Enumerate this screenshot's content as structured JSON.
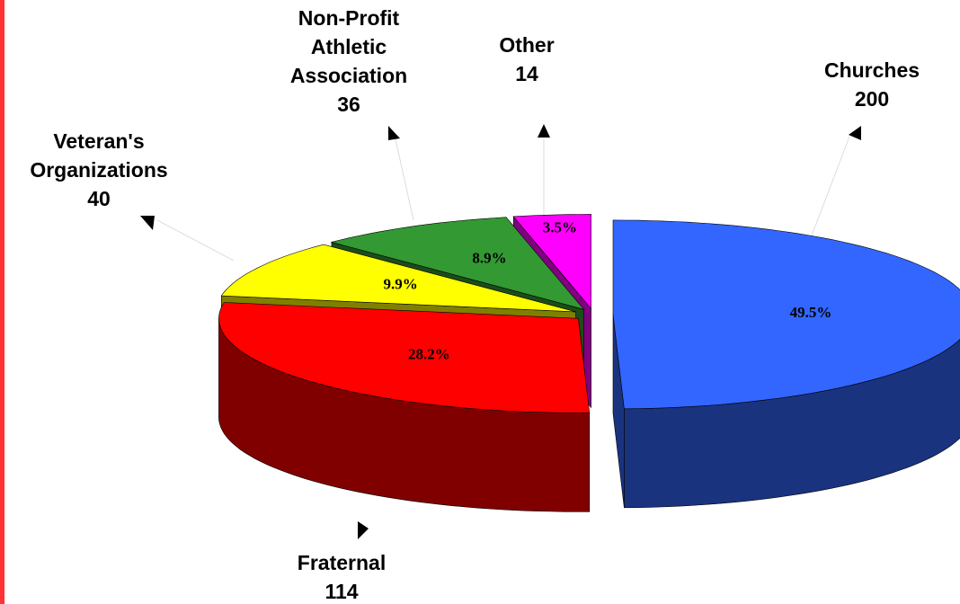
{
  "chart_data": {
    "type": "pie3d",
    "categories": [
      "Churches",
      "Fraternal",
      "Veteran's Organizations",
      "Non-Profit Athletic Association",
      "Other"
    ],
    "values": [
      200,
      114,
      40,
      36,
      14
    ],
    "percent_labels": [
      "49.5%",
      "28.2%",
      "9.9%",
      "8.9%",
      "3.5%"
    ],
    "colors": [
      "#3366ff",
      "#ff0000",
      "#ffff00",
      "#339933",
      "#ff00ff"
    ],
    "side_colors": [
      "#1a337f",
      "#800000",
      "#808000",
      "#1a4d1a",
      "#800080"
    ]
  }
}
